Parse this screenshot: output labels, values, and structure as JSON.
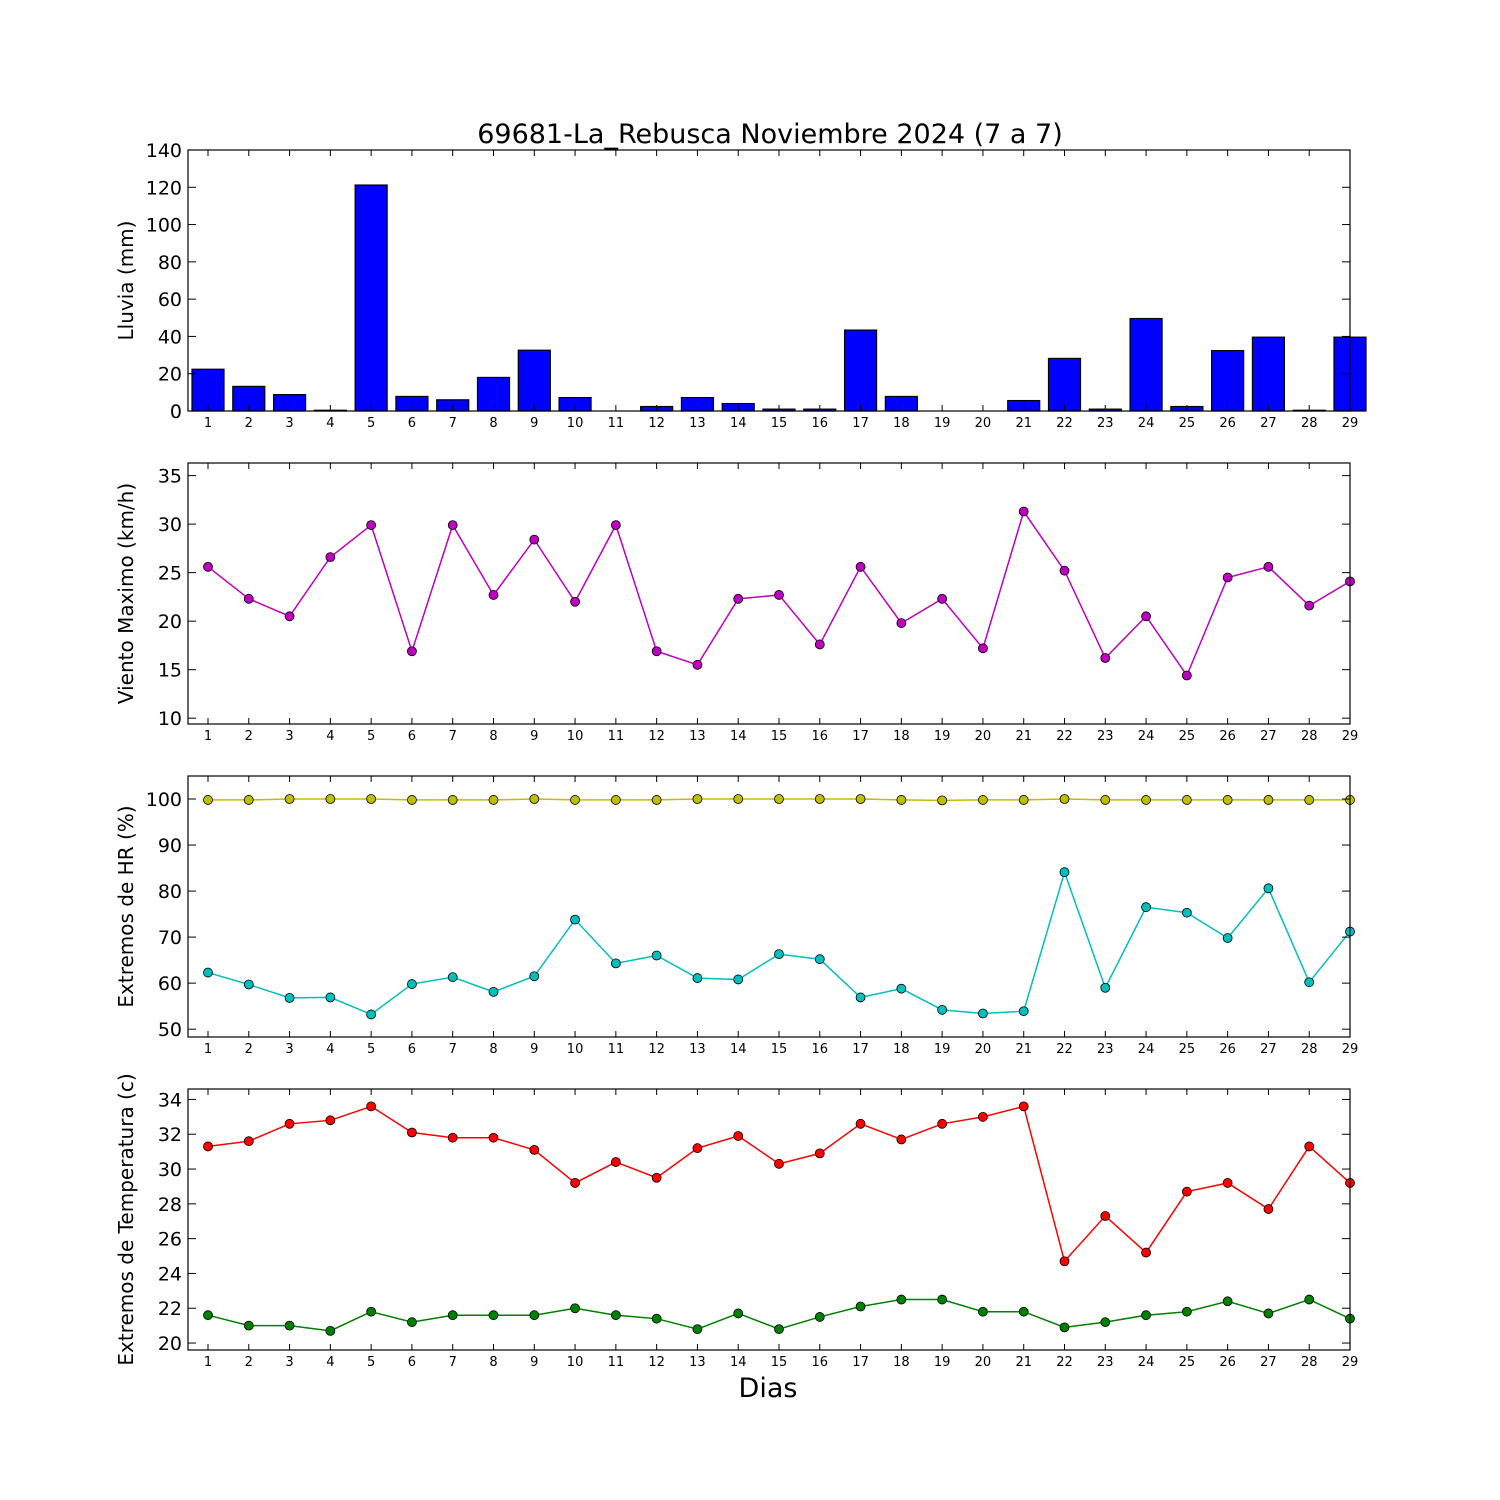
{
  "title": "69681-La_Rebusca Noviembre 2024  (7 a 7)",
  "xlabel": "Dias",
  "chart_data": [
    {
      "type": "bar",
      "ylabel": "Lluvia (mm)",
      "ylim": [
        0,
        140
      ],
      "yticks": [
        0,
        20,
        40,
        60,
        80,
        100,
        120,
        140
      ],
      "categories": [
        "1",
        "2",
        "3",
        "4",
        "5",
        "6",
        "7",
        "8",
        "9",
        "10",
        "11",
        "12",
        "13",
        "14",
        "15",
        "16",
        "17",
        "18",
        "19",
        "20",
        "21",
        "22",
        "23",
        "24",
        "25",
        "26",
        "27",
        "28",
        "29"
      ],
      "values": [
        22.4,
        13.2,
        8.8,
        0.4,
        121.2,
        7.8,
        6.0,
        18.0,
        32.6,
        7.2,
        0.0,
        2.4,
        7.2,
        4.0,
        1.0,
        1.0,
        43.4,
        7.8,
        0.0,
        0.0,
        5.6,
        28.2,
        1.0,
        49.6,
        2.4,
        32.4,
        39.6,
        0.4,
        39.6
      ],
      "color": "#0000ff"
    },
    {
      "type": "line",
      "ylabel": "Viento Maximo (km/h)",
      "ylim": [
        9.4,
        36.3
      ],
      "yticks": [
        10,
        15,
        20,
        25,
        30,
        35
      ],
      "categories": [
        "1",
        "2",
        "3",
        "4",
        "5",
        "6",
        "7",
        "8",
        "9",
        "10",
        "11",
        "12",
        "13",
        "14",
        "15",
        "16",
        "17",
        "18",
        "19",
        "20",
        "21",
        "22",
        "23",
        "24",
        "25",
        "26",
        "27",
        "28",
        "29"
      ],
      "series": [
        {
          "values": [
            25.6,
            22.3,
            20.5,
            26.6,
            29.9,
            16.9,
            29.9,
            22.7,
            28.4,
            22.0,
            29.9,
            16.9,
            15.5,
            22.3,
            22.7,
            17.6,
            25.6,
            19.8,
            22.3,
            17.2,
            31.3,
            25.2,
            16.2,
            20.5,
            14.4,
            24.5,
            25.6,
            21.6,
            24.1
          ],
          "color": "#bf00bf"
        }
      ]
    },
    {
      "type": "line",
      "ylabel": "Extremos de HR (%)",
      "ylim": [
        48.3,
        105
      ],
      "yticks": [
        50,
        60,
        70,
        80,
        90,
        100
      ],
      "categories": [
        "1",
        "2",
        "3",
        "4",
        "5",
        "6",
        "7",
        "8",
        "9",
        "10",
        "11",
        "12",
        "13",
        "14",
        "15",
        "16",
        "17",
        "18",
        "19",
        "20",
        "21",
        "22",
        "23",
        "24",
        "25",
        "26",
        "27",
        "28",
        "29"
      ],
      "series": [
        {
          "values": [
            99.8,
            99.8,
            100,
            100,
            100,
            99.8,
            99.8,
            99.8,
            100,
            99.8,
            99.8,
            99.8,
            100,
            100,
            100,
            100,
            100,
            99.8,
            99.7,
            99.8,
            99.8,
            100,
            99.8,
            99.8,
            99.8,
            99.8,
            99.8,
            99.8,
            99.8
          ],
          "color": "#bfbf00"
        },
        {
          "values": [
            62.3,
            59.7,
            56.8,
            56.9,
            53.2,
            59.8,
            61.3,
            58.1,
            61.5,
            73.8,
            64.3,
            66.0,
            61.1,
            60.8,
            66.3,
            65.2,
            56.9,
            58.8,
            54.2,
            53.4,
            53.9,
            84.1,
            59.0,
            76.5,
            75.3,
            69.8,
            80.6,
            60.2,
            71.2
          ],
          "color": "#00bfbf"
        }
      ]
    },
    {
      "type": "line",
      "ylabel": "Extremos de Temperatura (c)",
      "ylim": [
        19.6,
        34.6
      ],
      "yticks": [
        20,
        22,
        24,
        26,
        28,
        30,
        32,
        34
      ],
      "categories": [
        "1",
        "2",
        "3",
        "4",
        "5",
        "6",
        "7",
        "8",
        "9",
        "10",
        "11",
        "12",
        "13",
        "14",
        "15",
        "16",
        "17",
        "18",
        "19",
        "20",
        "21",
        "22",
        "23",
        "24",
        "25",
        "26",
        "27",
        "28",
        "29"
      ],
      "series": [
        {
          "values": [
            31.3,
            31.6,
            32.6,
            32.8,
            33.6,
            32.1,
            31.8,
            31.8,
            31.1,
            29.2,
            30.4,
            29.5,
            31.2,
            31.9,
            30.3,
            30.9,
            32.6,
            31.7,
            32.6,
            33.0,
            33.6,
            24.7,
            27.3,
            25.2,
            28.7,
            29.2,
            27.7,
            31.3,
            29.2
          ],
          "color": "#ff0000"
        },
        {
          "values": [
            21.6,
            21.0,
            21.0,
            20.7,
            21.8,
            21.2,
            21.6,
            21.6,
            21.6,
            22.0,
            21.6,
            21.4,
            20.8,
            21.7,
            20.8,
            21.5,
            22.1,
            22.5,
            22.5,
            21.8,
            21.8,
            20.9,
            21.2,
            21.6,
            21.8,
            22.4,
            21.7,
            22.5,
            21.4
          ],
          "color": "#008000"
        }
      ]
    }
  ]
}
